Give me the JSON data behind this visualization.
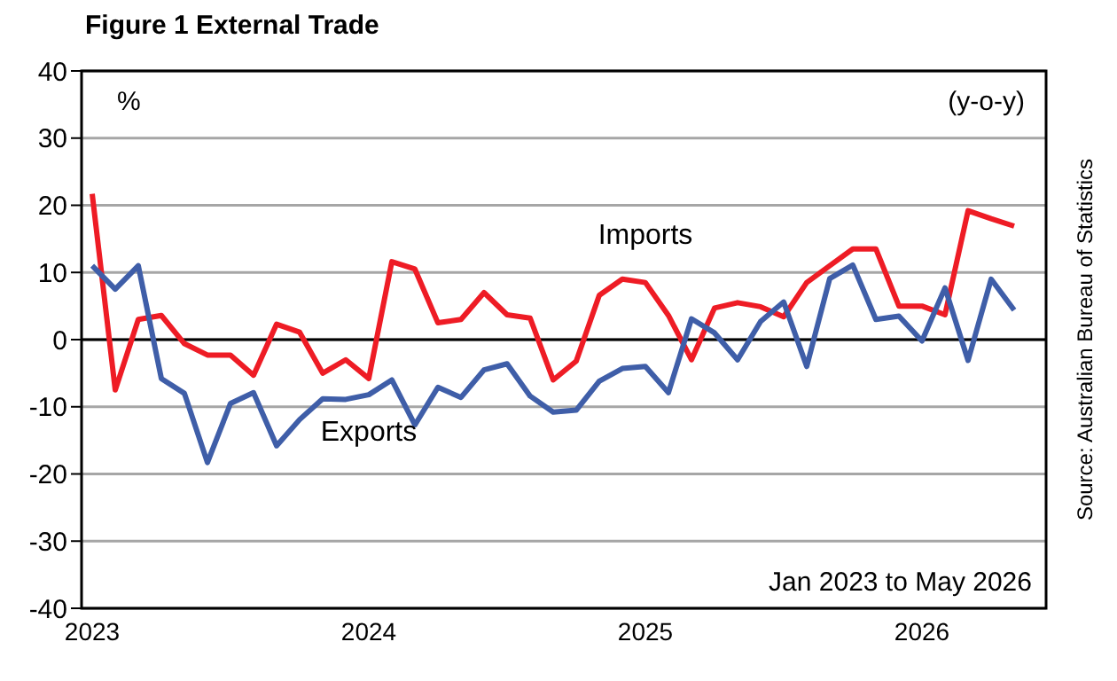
{
  "chart_data": {
    "type": "line",
    "title": "Figure 1 External Trade",
    "ylabel": "%",
    "annotations": [
      "(y-o-y)",
      "Jan 2023 to May 2026",
      "Source: Australian Bureau of Statistics"
    ],
    "categories": [
      "2023",
      null,
      null,
      null,
      null,
      null,
      null,
      null,
      null,
      null,
      null,
      null,
      "2024",
      null,
      null,
      null,
      null,
      null,
      null,
      null,
      null,
      null,
      null,
      null,
      "2025",
      null,
      null,
      null,
      null,
      null,
      null,
      null,
      null,
      null,
      null,
      null,
      "2026",
      null,
      null,
      null,
      null
    ],
    "series": [
      {
        "name": "Imports",
        "color": "#ee1c25",
        "values": [
          21.7,
          -7.5,
          3.0,
          3.6,
          -0.6,
          -2.3,
          -2.3,
          -5.3,
          2.3,
          1.1,
          -5.0,
          -3.0,
          -5.8,
          11.6,
          10.5,
          2.5,
          3.0,
          7.0,
          3.7,
          3.2,
          -6.0,
          -3.2,
          6.6,
          9.0,
          8.5,
          3.6,
          -3.0,
          4.7,
          5.5,
          4.9,
          3.4,
          8.5,
          11.0,
          13.5,
          13.5,
          5.0,
          5.0,
          3.7,
          19.2,
          18.0,
          16.9
        ]
      },
      {
        "name": "Exports",
        "color": "#3f5ea8",
        "values": [
          11.0,
          7.5,
          11.0,
          -5.8,
          -8.0,
          -18.3,
          -9.5,
          -7.9,
          -15.8,
          -11.9,
          -8.8,
          -8.9,
          -8.2,
          -6.0,
          -12.7,
          -7.1,
          -8.6,
          -4.5,
          -3.6,
          -8.4,
          -10.8,
          -10.5,
          -6.2,
          -4.3,
          -4.0,
          -7.9,
          3.1,
          1.0,
          -3.0,
          2.7,
          5.6,
          -4.0,
          9.1,
          11.1,
          3.0,
          3.5,
          -0.2,
          7.7,
          -3.1,
          9.0,
          4.4
        ]
      }
    ],
    "ylim": [
      -40,
      40
    ],
    "yticks": [
      -40,
      -30,
      -20,
      -10,
      0,
      10,
      20,
      30,
      40
    ],
    "grid": "y",
    "legend": false,
    "marker": "none",
    "line_style": "solid",
    "ref_lines": [
      {
        "axis": "y",
        "value": 0,
        "color": "#000000"
      }
    ]
  }
}
